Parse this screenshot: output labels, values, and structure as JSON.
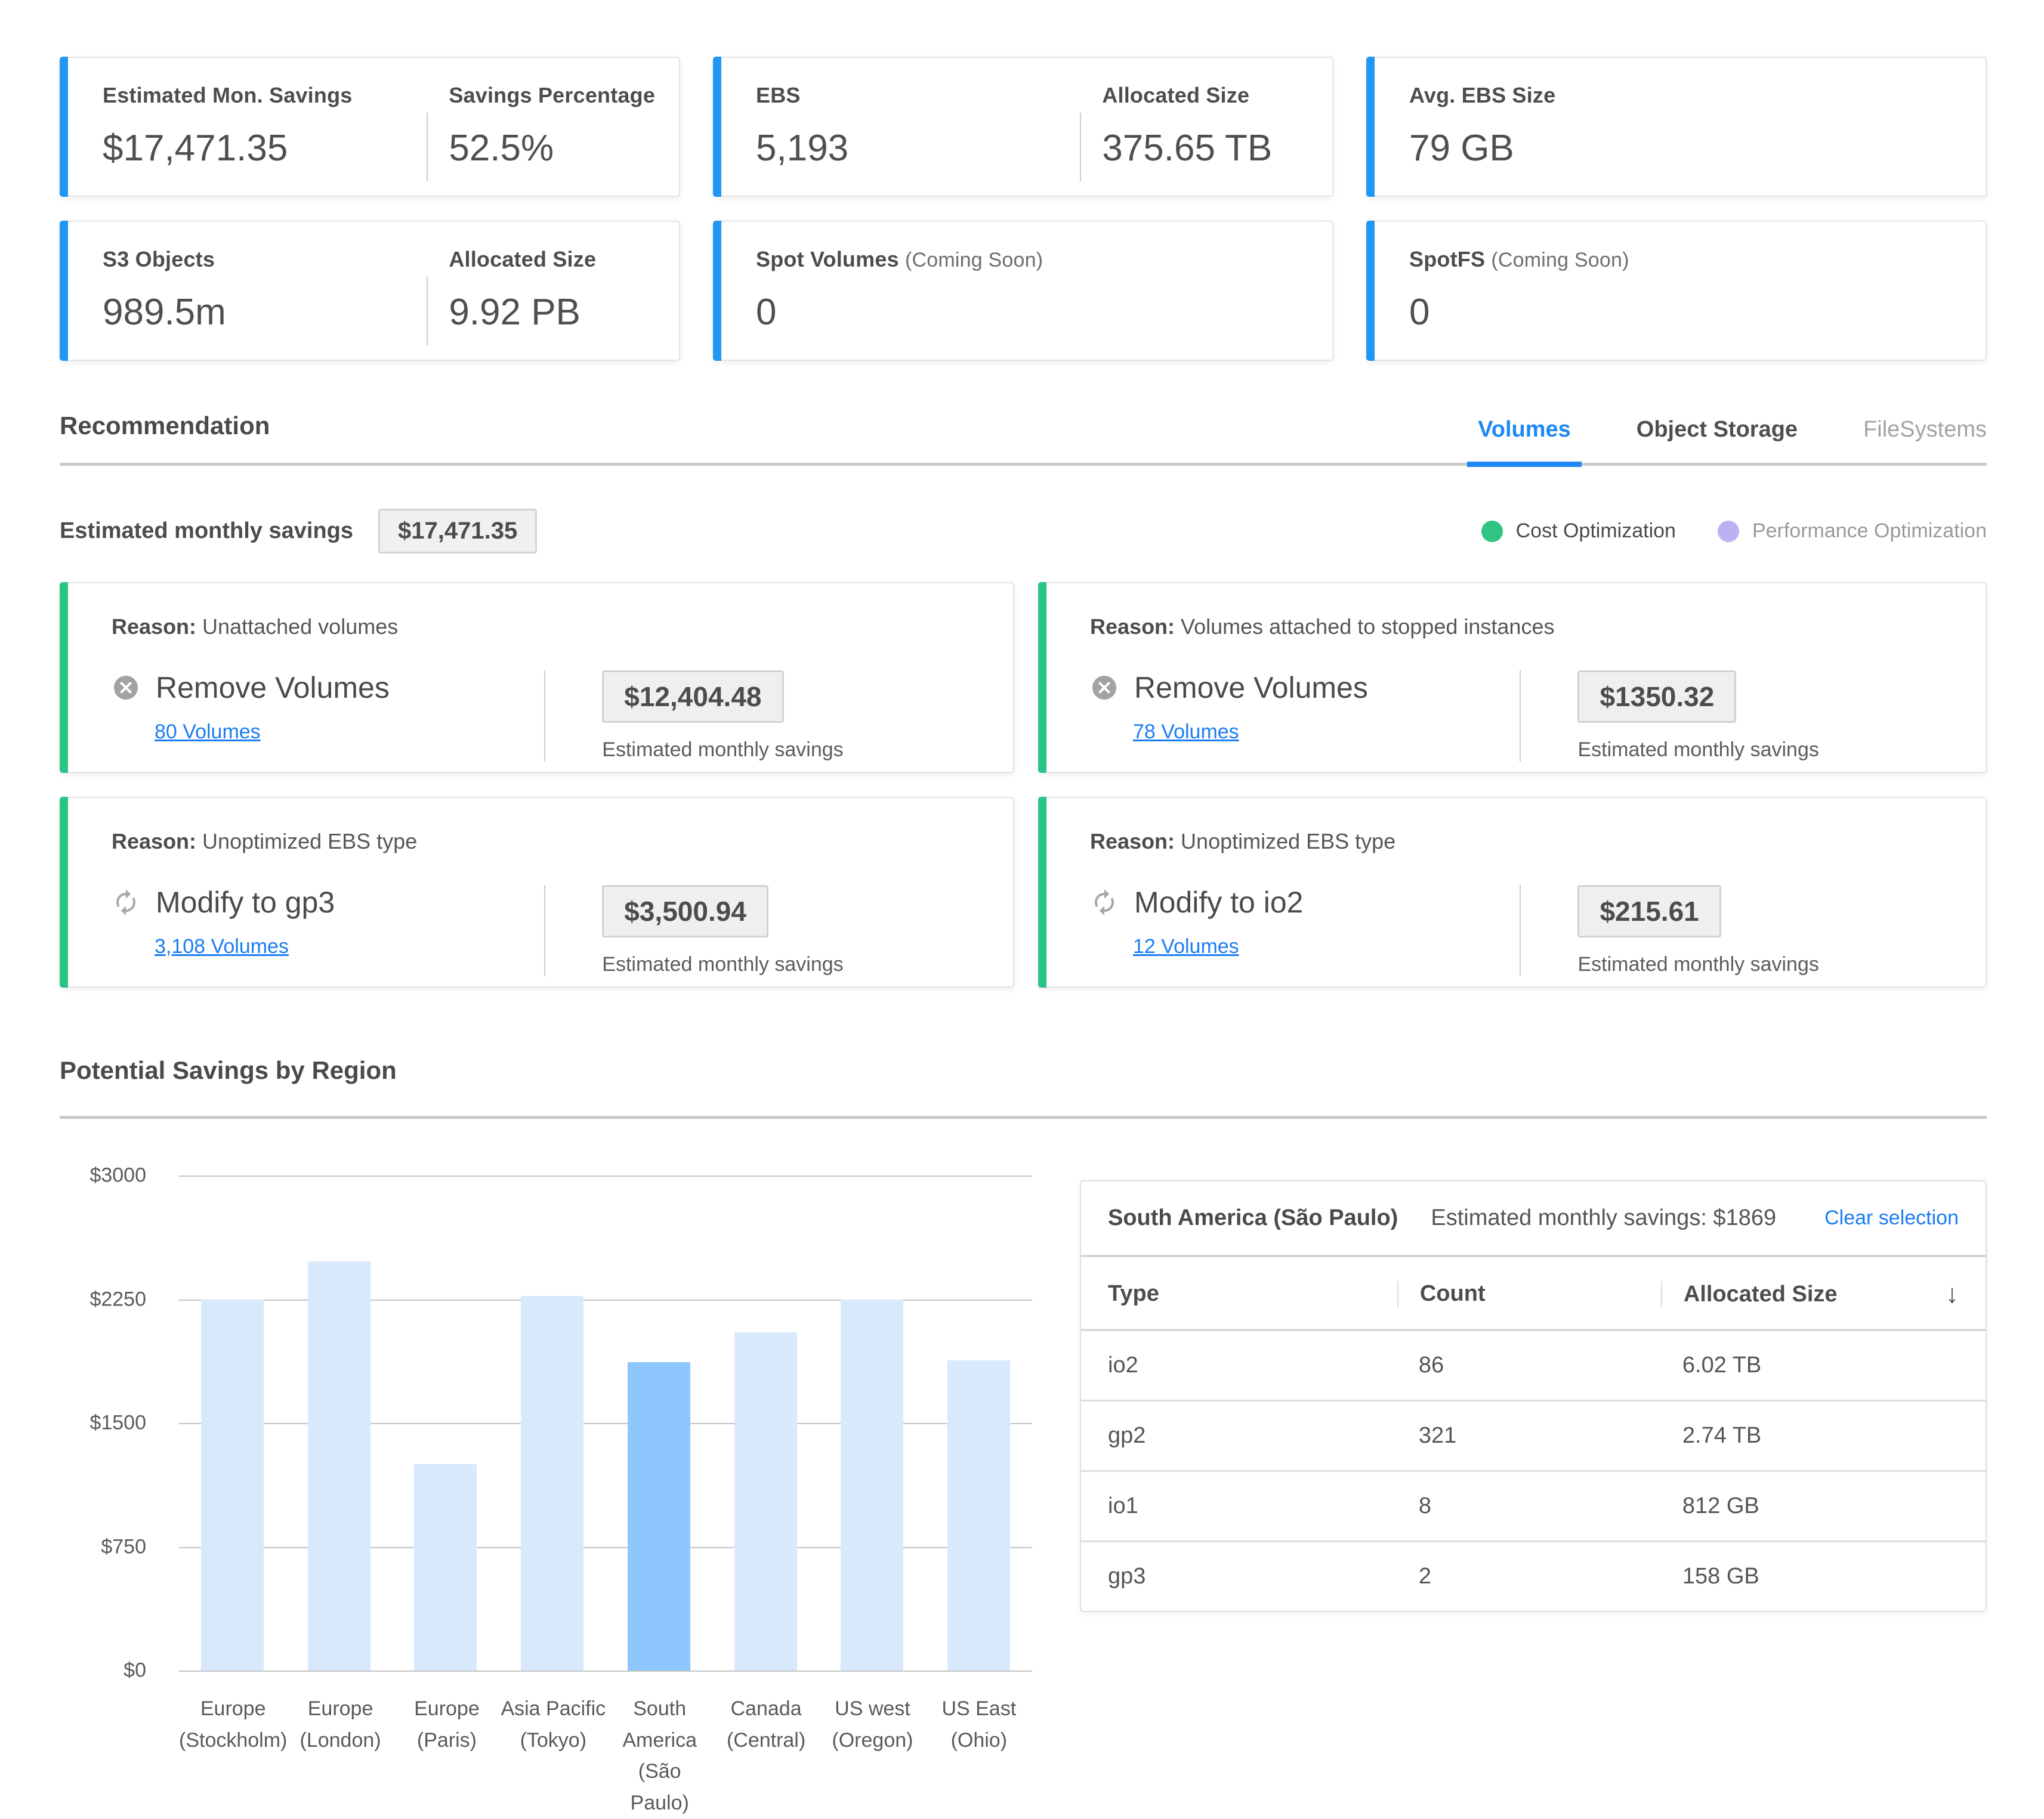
{
  "colors": {
    "accent_blue": "#2196f3",
    "accent_green": "#2bc487",
    "tab_active_blue": "#1e88f5",
    "link_blue": "#1b7df2",
    "legend_green": "#2ec482",
    "legend_purple": "#bcb1f2",
    "bar_blue": "#d9e9fc",
    "bar_selected_blue": "#8dc7fd"
  },
  "stats": {
    "row1": [
      {
        "metrics": [
          {
            "label": "Estimated Mon. Savings",
            "value": "$17,471.35"
          },
          {
            "label": "Savings Percentage",
            "value": "52.5%"
          }
        ]
      },
      {
        "metrics": [
          {
            "label": "EBS",
            "value": "5,193"
          },
          {
            "label": "Allocated Size",
            "value": "375.65 TB"
          }
        ]
      },
      {
        "metrics": [
          {
            "label": "Avg. EBS Size",
            "value": "79 GB"
          }
        ]
      }
    ],
    "row2": [
      {
        "metrics": [
          {
            "label": "S3 Objects",
            "value": "989.5m"
          },
          {
            "label": "Allocated Size",
            "value": "9.92 PB"
          }
        ]
      },
      {
        "metrics": [
          {
            "label": "Spot Volumes",
            "badge": "(Coming Soon)",
            "value": "0"
          }
        ]
      },
      {
        "metrics": [
          {
            "label": "SpotFS",
            "badge": "(Coming Soon)",
            "value": "0"
          }
        ]
      }
    ]
  },
  "recommendation": {
    "title": "Recommendation",
    "tabs": [
      {
        "label": "Volumes",
        "active": true
      },
      {
        "label": "Object Storage",
        "active": false
      },
      {
        "label": "FileSystems",
        "active": false
      }
    ],
    "summary_label": "Estimated monthly savings",
    "summary_value": "$17,471.35",
    "legend": [
      {
        "label": "Cost Optimization",
        "color": "#2ec482"
      },
      {
        "label": "Performance Optimization",
        "color": "#bcb1f2"
      }
    ],
    "cards": [
      {
        "reason_label": "Reason:",
        "reason": "Unattached volumes",
        "icon": "remove-icon",
        "action": "Remove Volumes",
        "link": "80 Volumes",
        "value": "$12,404.48",
        "caption": "Estimated monthly savings"
      },
      {
        "reason_label": "Reason:",
        "reason": "Volumes attached to stopped instances",
        "icon": "remove-icon",
        "action": "Remove Volumes",
        "link": "78 Volumes",
        "value": "$1350.32",
        "caption": "Estimated monthly savings"
      },
      {
        "reason_label": "Reason:",
        "reason": "Unoptimized EBS type",
        "icon": "modify-icon",
        "action": "Modify to gp3",
        "link": "3,108 Volumes",
        "value": "$3,500.94",
        "caption": "Estimated monthly savings"
      },
      {
        "reason_label": "Reason:",
        "reason": "Unoptimized EBS type",
        "icon": "modify-icon",
        "action": "Modify to io2",
        "link": "12 Volumes",
        "value": "$215.61",
        "caption": "Estimated monthly savings"
      }
    ]
  },
  "chart_data": {
    "type": "bar",
    "title": "Potential Savings by Region",
    "categories": [
      "Europe (Stockholm)",
      "Europe (London)",
      "Europe (Paris)",
      "Asia Pacific (Tokyo)",
      "South America (São Paulo)",
      "Canada (Central)",
      "US west (Oregon)",
      "US East (Ohio)"
    ],
    "values": [
      2250,
      2480,
      1250,
      2270,
      1869,
      2050,
      2250,
      1880
    ],
    "selected_index": 4,
    "x_labels": [
      {
        "l1": "Europe",
        "l2": "(Stockholm)"
      },
      {
        "l1": "Europe",
        "l2": "(London)"
      },
      {
        "l1": "Europe",
        "l2": "(Paris)"
      },
      {
        "l1": "Asia Pacific",
        "l2": "(Tokyo)"
      },
      {
        "l1": "South America",
        "l2": "(São Paulo)"
      },
      {
        "l1": "Canada",
        "l2": "(Central)"
      },
      {
        "l1": "US west",
        "l2": "(Oregon)"
      },
      {
        "l1": "US East",
        "l2": "(Ohio)"
      }
    ],
    "yticks": [
      "$3000",
      "$2250",
      "$1500",
      "$750",
      "$0"
    ],
    "ylim": [
      0,
      3000
    ],
    "xlabel": "",
    "ylabel": "",
    "grid": true,
    "legend_position": "none",
    "bar_color": "#d9e9fc",
    "selected_bar_color": "#8dc7fd"
  },
  "panel": {
    "title": "South America (São Paulo)",
    "subtitle": "Estimated monthly savings: $1869",
    "clear_label": "Clear selection",
    "sort_icon": "↓",
    "columns": [
      "Type",
      "Count",
      "Allocated Size"
    ],
    "rows": [
      [
        "io2",
        "86",
        "6.02 TB"
      ],
      [
        "gp2",
        "321",
        "2.74 TB"
      ],
      [
        "io1",
        "8",
        "812 GB"
      ],
      [
        "gp3",
        "2",
        "158 GB"
      ]
    ]
  }
}
